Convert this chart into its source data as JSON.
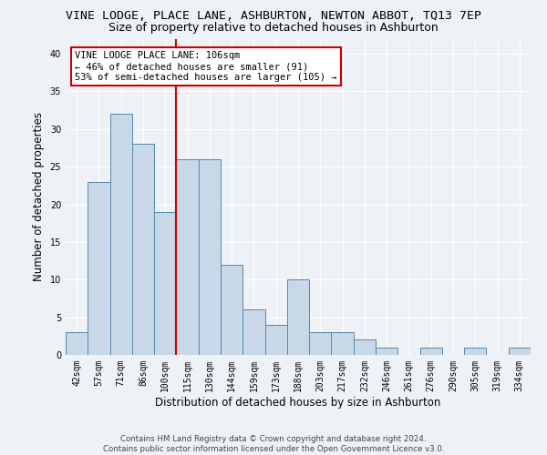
{
  "title": "VINE LODGE, PLACE LANE, ASHBURTON, NEWTON ABBOT, TQ13 7EP",
  "subtitle": "Size of property relative to detached houses in Ashburton",
  "xlabel": "Distribution of detached houses by size in Ashburton",
  "ylabel": "Number of detached properties",
  "bar_labels": [
    "42sqm",
    "57sqm",
    "71sqm",
    "86sqm",
    "100sqm",
    "115sqm",
    "130sqm",
    "144sqm",
    "159sqm",
    "173sqm",
    "188sqm",
    "203sqm",
    "217sqm",
    "232sqm",
    "246sqm",
    "261sqm",
    "276sqm",
    "290sqm",
    "305sqm",
    "319sqm",
    "334sqm"
  ],
  "bar_values": [
    3,
    23,
    32,
    28,
    19,
    26,
    26,
    12,
    6,
    4,
    10,
    3,
    3,
    2,
    1,
    0,
    1,
    0,
    1,
    0,
    1
  ],
  "bar_color": "#c8d8e8",
  "bar_edge_color": "#5588aa",
  "vline_x": 4.5,
  "vline_color": "#cc0000",
  "annotation_text": "VINE LODGE PLACE LANE: 106sqm\n← 46% of detached houses are smaller (91)\n53% of semi-detached houses are larger (105) →",
  "annotation_box_color": "#ffffff",
  "annotation_box_edge": "#cc0000",
  "ylim": [
    0,
    42
  ],
  "yticks": [
    0,
    5,
    10,
    15,
    20,
    25,
    30,
    35,
    40
  ],
  "footer_line1": "Contains HM Land Registry data © Crown copyright and database right 2024.",
  "footer_line2": "Contains public sector information licensed under the Open Government Licence v3.0.",
  "background_color": "#eef2f7",
  "grid_color": "#ffffff",
  "title_fontsize": 9.5,
  "subtitle_fontsize": 9,
  "tick_fontsize": 7,
  "ylabel_fontsize": 8.5,
  "xlabel_fontsize": 8.5,
  "footer_fontsize": 6.2,
  "annotation_fontsize": 7.5
}
